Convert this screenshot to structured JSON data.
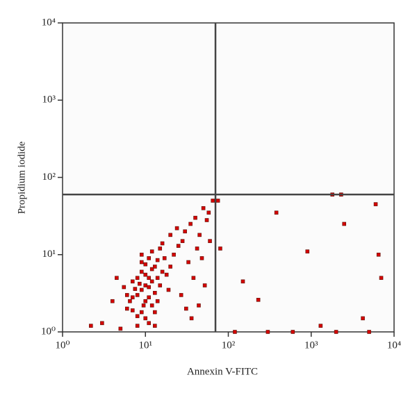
{
  "chart_data": {
    "type": "scatter",
    "x_label": "Annexin V-FITC",
    "y_label": "Propidium iodide",
    "xscale": "log",
    "yscale": "log",
    "xlim": [
      1,
      10000
    ],
    "ylim": [
      1,
      10000
    ],
    "xticks": [
      {
        "value": 1,
        "label": "10⁰"
      },
      {
        "value": 10,
        "label": "10¹"
      },
      {
        "value": 100,
        "label": "10²"
      },
      {
        "value": 1000,
        "label": "10³"
      },
      {
        "value": 10000,
        "label": "10⁴"
      }
    ],
    "yticks": [
      {
        "value": 1,
        "label": "10⁰"
      },
      {
        "value": 10,
        "label": "10¹"
      },
      {
        "value": 100,
        "label": "10²"
      },
      {
        "value": 1000,
        "label": "10³"
      },
      {
        "value": 10000,
        "label": "10⁴"
      }
    ],
    "quadrant_x": 70,
    "quadrant_y": 60,
    "color": "#d40000",
    "edge_color": "#5a1a10",
    "quadrant_color": "#444444",
    "x": [
      10,
      9,
      11,
      8,
      12,
      10,
      9,
      13,
      7,
      11,
      8.5,
      12,
      10,
      9.5,
      14,
      7.5,
      11,
      13,
      8,
      10,
      15,
      6.5,
      9,
      12,
      16,
      7,
      11,
      14,
      9,
      6,
      18,
      10,
      13,
      8,
      20,
      17,
      7,
      12,
      15,
      6,
      22,
      9,
      11,
      14,
      19,
      5.5,
      16,
      25,
      8,
      13,
      30,
      35,
      28,
      40,
      45,
      24,
      50,
      55,
      33,
      38,
      42,
      27,
      60,
      48,
      20,
      65,
      52,
      31,
      58,
      4,
      3,
      2.2,
      5,
      4.5,
      36,
      44,
      150,
      230,
      380,
      900,
      1300,
      2500,
      4200,
      6000,
      6500,
      7000,
      1800,
      2300,
      120,
      300,
      600,
      2000,
      5000,
      75,
      80
    ],
    "y": [
      4,
      3.5,
      5,
      3,
      4.5,
      2.5,
      6,
      3.2,
      2.8,
      3.8,
      4.2,
      6.5,
      5.5,
      2.2,
      5,
      3.6,
      2.8,
      7,
      5,
      7.5,
      4,
      2.5,
      1.8,
      2.2,
      6,
      4.5,
      9,
      8.5,
      8,
      3,
      5.5,
      1.5,
      1.8,
      1.6,
      7,
      9,
      1.9,
      11,
      12,
      2,
      10,
      10,
      1.3,
      2.5,
      3.5,
      3.8,
      14,
      13,
      1.2,
      1.2,
      20,
      25,
      15,
      30,
      18,
      22,
      40,
      28,
      8,
      5,
      12,
      3,
      15,
      9,
      18,
      50,
      4,
      2,
      35,
      2.5,
      1.3,
      1.2,
      1.1,
      5,
      1.5,
      2.2,
      4.5,
      2.6,
      35,
      11,
      1.2,
      25,
      1.5,
      45,
      10,
      5,
      60,
      60,
      1,
      1,
      1,
      1,
      1,
      50,
      12
    ]
  }
}
